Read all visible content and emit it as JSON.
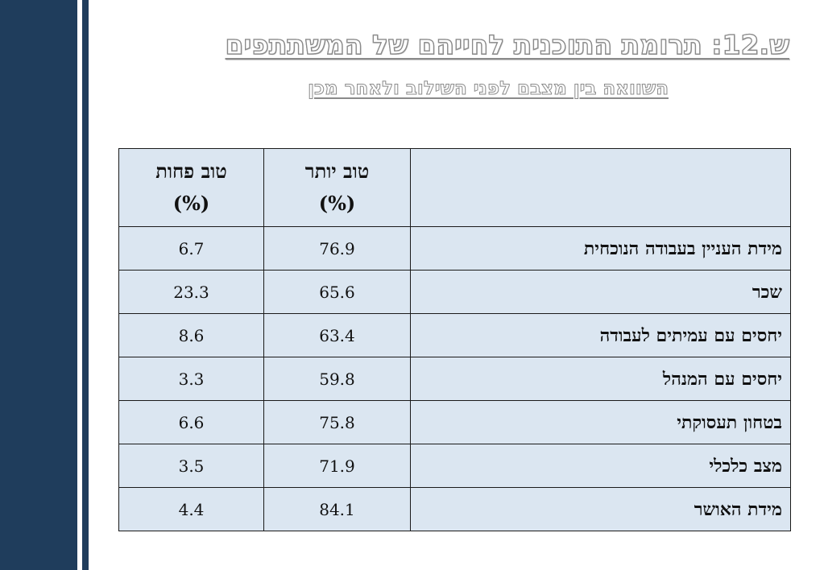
{
  "slide": {
    "title": "ש.12: תרומת התוכנית לחייהם של המשתתפים",
    "subtitle": "השוואה בין מצבם לפני השילוב ולאחר מכן"
  },
  "table": {
    "headers": {
      "better": "טוב יותר",
      "worse": "טוב פחות",
      "unit": "(%)"
    },
    "rows": [
      {
        "label": "מידת העניין בעבודה הנוכחית",
        "better": "76.9",
        "worse": "6.7"
      },
      {
        "label": "שכר",
        "better": "65.6",
        "worse": "23.3"
      },
      {
        "label": "יחסים עם עמיתים לעבודה",
        "better": "63.4",
        "worse": "8.6"
      },
      {
        "label": "יחסים עם המנהל",
        "better": "59.8",
        "worse": "3.3"
      },
      {
        "label": "בטחון תעסוקתי",
        "better": "75.8",
        "worse": "6.6"
      },
      {
        "label": "מצב כלכלי",
        "better": "71.9",
        "worse": "3.5"
      },
      {
        "label": "מידת האושר",
        "better": "84.1",
        "worse": "4.4"
      }
    ]
  },
  "colors": {
    "sidebar": "#1f3d5c",
    "table_background": "#dbe6f1",
    "title_outline": "#8a8a8a"
  }
}
